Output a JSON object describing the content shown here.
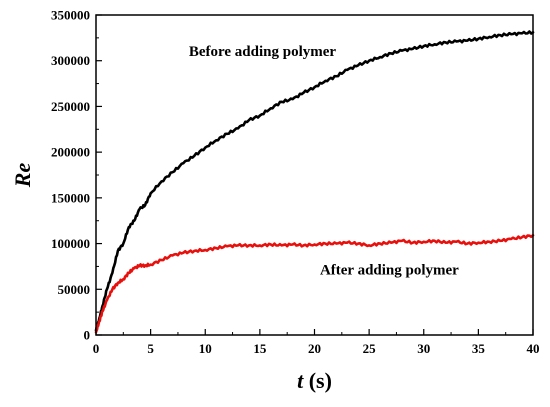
{
  "chart_data": {
    "type": "line",
    "xlabel_var": "t",
    "xlabel_unit": " (s)",
    "ylabel": "Re",
    "xlim": [
      0,
      40
    ],
    "ylim": [
      0,
      350000
    ],
    "x_ticks": [
      0,
      5,
      10,
      15,
      20,
      25,
      30,
      35,
      40
    ],
    "y_ticks": [
      0,
      50000,
      100000,
      150000,
      200000,
      250000,
      300000,
      350000
    ],
    "grid": false,
    "legend": "none",
    "annotations": [
      {
        "text": "Before adding polymer",
        "x": 8.5,
        "y": 305000
      },
      {
        "text": "After adding polymer",
        "x": 20.5,
        "y": 66000
      }
    ],
    "series": [
      {
        "color": "#000000",
        "x": [
          0,
          0.3,
          0.6,
          1.0,
          1.5,
          2.0,
          2.5,
          3.0,
          3.5,
          4.0,
          4.5,
          5.0,
          6.0,
          7.0,
          8.0,
          9.0,
          10.0,
          11.0,
          12.0,
          13.0,
          14.0,
          15.0,
          16.0,
          17.0,
          18.0,
          19.0,
          20.0,
          21.0,
          22.0,
          23.0,
          24.0,
          25.0,
          26.0,
          27.0,
          28.0,
          29.0,
          30.0,
          31.0,
          32.0,
          33.0,
          34.0,
          35.0,
          36.0,
          37.0,
          38.0,
          39.0,
          40.0
        ],
        "values": [
          5000,
          18000,
          32000,
          50000,
          68000,
          92000,
          100000,
          118000,
          125000,
          138000,
          142000,
          155000,
          168000,
          178000,
          188000,
          196000,
          205000,
          213000,
          220000,
          226000,
          235000,
          240000,
          248000,
          255000,
          258000,
          265000,
          271000,
          278000,
          283000,
          290000,
          295000,
          300000,
          304000,
          308000,
          311000,
          313000,
          316000,
          318000,
          320000,
          321000,
          322000,
          324000,
          326000,
          328000,
          329000,
          330000,
          331000
        ]
      },
      {
        "color": "#e8100c",
        "x": [
          0,
          0.3,
          0.6,
          1.0,
          1.5,
          2.0,
          2.5,
          3.0,
          3.5,
          4.0,
          4.5,
          5.0,
          6.0,
          7.0,
          8.0,
          9.0,
          10.0,
          11.0,
          12.0,
          13.0,
          14.0,
          15.0,
          16.0,
          17.0,
          18.0,
          19.0,
          20.0,
          21.0,
          22.0,
          23.0,
          24.0,
          25.0,
          26.0,
          27.0,
          28.0,
          29.0,
          30.0,
          31.0,
          32.0,
          33.0,
          34.0,
          35.0,
          36.0,
          37.0,
          38.0,
          39.0,
          40.0
        ],
        "values": [
          3000,
          15000,
          26000,
          38000,
          50000,
          57000,
          61000,
          68000,
          73000,
          76000,
          76000,
          77000,
          82000,
          87000,
          90000,
          92000,
          93000,
          95000,
          97000,
          98000,
          98000,
          98000,
          99000,
          98000,
          99000,
          98000,
          99000,
          100000,
          100000,
          101000,
          100000,
          98000,
          100000,
          101000,
          103000,
          101000,
          102000,
          103000,
          101000,
          102000,
          100000,
          101000,
          102000,
          103000,
          105000,
          107000,
          109000
        ]
      }
    ]
  }
}
